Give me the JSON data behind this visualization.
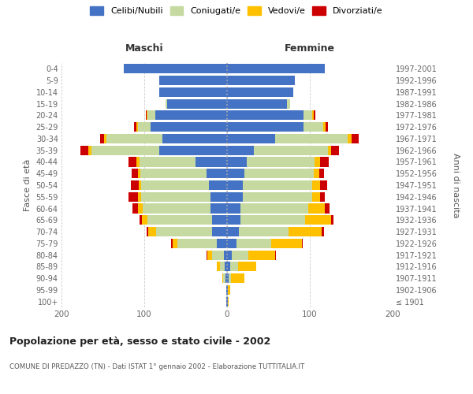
{
  "age_groups": [
    "100+",
    "95-99",
    "90-94",
    "85-89",
    "80-84",
    "75-79",
    "70-74",
    "65-69",
    "60-64",
    "55-59",
    "50-54",
    "45-49",
    "40-44",
    "35-39",
    "30-34",
    "25-29",
    "20-24",
    "15-19",
    "10-14",
    "5-9",
    "0-4"
  ],
  "birth_years": [
    "≤ 1901",
    "1902-1906",
    "1907-1911",
    "1912-1916",
    "1917-1921",
    "1922-1926",
    "1927-1931",
    "1932-1936",
    "1937-1941",
    "1942-1946",
    "1947-1951",
    "1952-1956",
    "1957-1961",
    "1962-1966",
    "1967-1971",
    "1972-1976",
    "1977-1981",
    "1982-1986",
    "1987-1991",
    "1992-1996",
    "1997-2001"
  ],
  "males_celibi": [
    1,
    1,
    2,
    3,
    4,
    12,
    18,
    18,
    20,
    20,
    22,
    25,
    38,
    82,
    78,
    92,
    87,
    72,
    82,
    82,
    125
  ],
  "males_coniugati": [
    0,
    0,
    3,
    6,
    14,
    48,
    68,
    78,
    82,
    84,
    82,
    80,
    68,
    82,
    68,
    16,
    9,
    2,
    0,
    0,
    0
  ],
  "males_vedovi": [
    0,
    0,
    1,
    3,
    6,
    6,
    9,
    7,
    6,
    4,
    3,
    3,
    4,
    4,
    3,
    2,
    1,
    0,
    0,
    0,
    0
  ],
  "males_divorziati": [
    0,
    0,
    0,
    0,
    1,
    2,
    2,
    3,
    6,
    11,
    9,
    7,
    9,
    9,
    4,
    2,
    1,
    0,
    0,
    0,
    0
  ],
  "females_nubili": [
    1,
    1,
    2,
    4,
    6,
    11,
    14,
    16,
    16,
    19,
    19,
    21,
    24,
    32,
    58,
    92,
    92,
    72,
    80,
    82,
    118
  ],
  "females_coniugate": [
    0,
    0,
    3,
    9,
    20,
    42,
    60,
    78,
    82,
    84,
    84,
    84,
    82,
    90,
    88,
    24,
    11,
    4,
    0,
    0,
    0
  ],
  "females_vedove": [
    1,
    3,
    16,
    22,
    32,
    37,
    40,
    32,
    20,
    9,
    9,
    6,
    6,
    4,
    4,
    3,
    2,
    0,
    0,
    0,
    0
  ],
  "females_divorziate": [
    0,
    0,
    0,
    0,
    1,
    1,
    3,
    3,
    6,
    6,
    9,
    6,
    11,
    9,
    9,
    3,
    2,
    0,
    0,
    0,
    0
  ],
  "color_celibi": "#4472c4",
  "color_coniugati": "#c5d9a0",
  "color_vedovi": "#ffc000",
  "color_divorziati": "#cc0000",
  "xlim": 200,
  "title": "Popolazione per età, sesso e stato civile - 2002",
  "subtitle": "COMUNE DI PREDAZZO (TN) - Dati ISTAT 1° gennaio 2002 - Elaborazione TUTTITALIA.IT",
  "ylabel_left": "Fasce di età",
  "ylabel_right": "Anni di nascita",
  "label_maschi": "Maschi",
  "label_femmine": "Femmine",
  "legend_labels": [
    "Celibi/Nubili",
    "Coniugati/e",
    "Vedovi/e",
    "Divorziati/e"
  ],
  "background_color": "#ffffff",
  "grid_color": "#cccccc"
}
